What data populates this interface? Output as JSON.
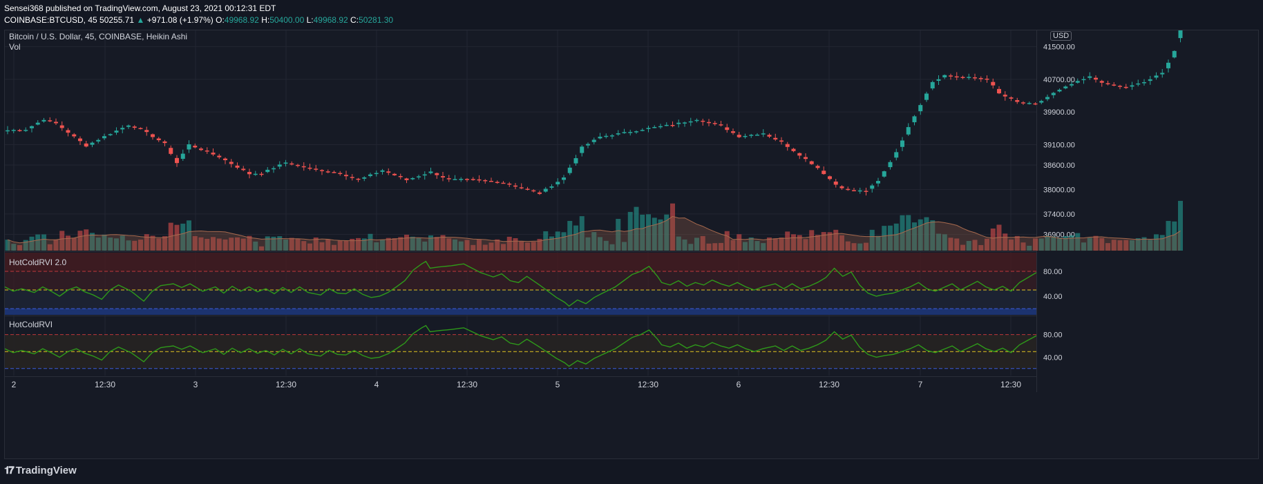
{
  "header": {
    "line1": "Sensei368 published on TradingView.com, August 23, 2021 00:12:31 EDT",
    "symbol": "COINBASE:BTCUSD, 45",
    "price": "50255.71",
    "change_arrow": "▲",
    "change": "+971.08 (+1.97%)",
    "o_label": "O:",
    "o_value": "49968.92",
    "h_label": "H:",
    "h_value": "50400.00",
    "l_label": "L:",
    "l_value": "49968.92",
    "c_label": "C:",
    "c_value": "50281.30"
  },
  "pane_labels": {
    "title": "Bitcoin / U.S. Dollar, 45, COINBASE, Heikin Ashi",
    "vol": "Vol",
    "currency": "USD",
    "rvi1": "HotColdRVI 2.0",
    "rvi2": "HotColdRVI"
  },
  "footer": {
    "logo_text": "TradingView",
    "logo_mark": "𝟏𝟕"
  },
  "colors": {
    "up": "#26a69a",
    "down": "#ef5350",
    "grid": "#232632",
    "rvi_line": "#2e9a1a",
    "mid_line": "#e4c620",
    "upper_line": "#c0393b",
    "lower_line": "#3b5bd6"
  },
  "chart_data": [
    {
      "type": "candlestick",
      "title": "Bitcoin / U.S. Dollar, 45, COINBASE, Heikin Ashi",
      "y_ticks": [
        "41500.00",
        "40700.00",
        "39900.00",
        "39100.00",
        "38600.00",
        "38000.00",
        "37400.00",
        "36900.00"
      ],
      "x_ticks": [
        "2",
        "12:30",
        "3",
        "12:30",
        "4",
        "12:30",
        "5",
        "12:30",
        "6",
        "12:30",
        "7",
        "12:30"
      ],
      "ylim": [
        36500,
        41900
      ],
      "anchors": [
        [
          0,
          39450
        ],
        [
          3,
          39470
        ],
        [
          6,
          39720
        ],
        [
          8,
          39620
        ],
        [
          13,
          39070
        ],
        [
          16,
          39300
        ],
        [
          20,
          39580
        ],
        [
          22,
          39480
        ],
        [
          26,
          39120
        ],
        [
          28,
          38650
        ],
        [
          30,
          39100
        ],
        [
          35,
          38800
        ],
        [
          40,
          38380
        ],
        [
          42,
          38400
        ],
        [
          46,
          38660
        ],
        [
          50,
          38510
        ],
        [
          55,
          38400
        ],
        [
          58,
          38230
        ],
        [
          62,
          38470
        ],
        [
          66,
          38230
        ],
        [
          70,
          38430
        ],
        [
          73,
          38240
        ],
        [
          77,
          38240
        ],
        [
          82,
          38170
        ],
        [
          88,
          37900
        ],
        [
          92,
          38290
        ],
        [
          95,
          39030
        ],
        [
          98,
          39290
        ],
        [
          102,
          39390
        ],
        [
          106,
          39500
        ],
        [
          110,
          39590
        ],
        [
          114,
          39720
        ],
        [
          118,
          39560
        ],
        [
          121,
          39300
        ],
        [
          125,
          39380
        ],
        [
          128,
          39160
        ],
        [
          131,
          38850
        ],
        [
          134,
          38530
        ],
        [
          137,
          38120
        ],
        [
          139,
          37980
        ],
        [
          142,
          37960
        ],
        [
          144,
          38200
        ],
        [
          147,
          38920
        ],
        [
          150,
          39810
        ],
        [
          153,
          40640
        ],
        [
          155,
          40800
        ],
        [
          158,
          40750
        ],
        [
          162,
          40720
        ],
        [
          164,
          40350
        ],
        [
          167,
          40140
        ],
        [
          170,
          40080
        ],
        [
          173,
          40360
        ],
        [
          176,
          40580
        ],
        [
          179,
          40760
        ],
        [
          182,
          40570
        ],
        [
          185,
          40500
        ],
        [
          188,
          40630
        ],
        [
          191,
          40850
        ],
        [
          193,
          41400
        ],
        [
          194,
          42100
        ]
      ]
    },
    {
      "type": "bar",
      "title": "Vol",
      "note": "volume bars with moving-average area, colored by candle direction"
    },
    {
      "type": "line",
      "title": "HotColdRVI 2.0",
      "y_ticks": [
        "80.00",
        "40.00"
      ],
      "ylim": [
        10,
        110
      ],
      "levels": {
        "upper": 80,
        "middle": 50,
        "lower": 20
      },
      "anchors": [
        [
          0,
          55
        ],
        [
          2,
          48
        ],
        [
          4,
          52
        ],
        [
          7,
          46
        ],
        [
          9,
          55
        ],
        [
          11,
          48
        ],
        [
          13,
          40
        ],
        [
          15,
          50
        ],
        [
          17,
          55
        ],
        [
          19,
          47
        ],
        [
          21,
          42
        ],
        [
          23,
          35
        ],
        [
          25,
          50
        ],
        [
          27,
          58
        ],
        [
          30,
          48
        ],
        [
          33,
          32
        ],
        [
          35,
          48
        ],
        [
          37,
          57
        ],
        [
          40,
          60
        ],
        [
          42,
          54
        ],
        [
          44,
          60
        ],
        [
          47,
          48
        ],
        [
          50,
          55
        ],
        [
          52,
          45
        ],
        [
          54,
          56
        ],
        [
          56,
          48
        ],
        [
          58,
          55
        ],
        [
          60,
          47
        ],
        [
          62,
          52
        ],
        [
          64,
          44
        ],
        [
          66,
          54
        ],
        [
          68,
          46
        ],
        [
          70,
          55
        ],
        [
          72,
          46
        ],
        [
          75,
          42
        ],
        [
          77,
          52
        ],
        [
          79,
          45
        ],
        [
          81,
          44
        ],
        [
          83,
          52
        ],
        [
          85,
          43
        ],
        [
          87,
          38
        ],
        [
          89,
          40
        ],
        [
          91,
          46
        ],
        [
          93,
          55
        ],
        [
          95,
          65
        ],
        [
          97,
          82
        ],
        [
          99,
          92
        ],
        [
          100,
          96
        ],
        [
          101,
          85
        ],
        [
          103,
          87
        ],
        [
          106,
          89
        ],
        [
          109,
          92
        ],
        [
          111,
          85
        ],
        [
          113,
          78
        ],
        [
          116,
          71
        ],
        [
          118,
          76
        ],
        [
          120,
          65
        ],
        [
          122,
          62
        ],
        [
          124,
          72
        ],
        [
          127,
          58
        ],
        [
          129,
          48
        ],
        [
          131,
          38
        ],
        [
          133,
          30
        ],
        [
          134,
          24
        ],
        [
          136,
          34
        ],
        [
          138,
          28
        ],
        [
          140,
          38
        ],
        [
          142,
          45
        ],
        [
          145,
          55
        ],
        [
          147,
          65
        ],
        [
          149,
          75
        ],
        [
          151,
          80
        ],
        [
          153,
          88
        ],
        [
          155,
          72
        ],
        [
          156,
          62
        ],
        [
          158,
          58
        ],
        [
          160,
          65
        ],
        [
          162,
          56
        ],
        [
          164,
          62
        ],
        [
          166,
          58
        ],
        [
          168,
          66
        ],
        [
          170,
          60
        ],
        [
          172,
          56
        ],
        [
          174,
          62
        ],
        [
          176,
          55
        ],
        [
          178,
          50
        ],
        [
          180,
          55
        ],
        [
          183,
          60
        ],
        [
          185,
          52
        ],
        [
          187,
          60
        ],
        [
          189,
          52
        ],
        [
          191,
          56
        ],
        [
          193,
          62
        ],
        [
          195,
          70
        ],
        [
          197,
          85
        ],
        [
          199,
          72
        ],
        [
          201,
          79
        ],
        [
          203,
          58
        ],
        [
          205,
          45
        ],
        [
          207,
          40
        ],
        [
          209,
          43
        ],
        [
          211,
          45
        ],
        [
          213,
          50
        ],
        [
          215,
          55
        ],
        [
          217,
          62
        ],
        [
          219,
          52
        ],
        [
          221,
          48
        ],
        [
          223,
          54
        ],
        [
          225,
          60
        ],
        [
          227,
          50
        ],
        [
          229,
          57
        ],
        [
          231,
          64
        ],
        [
          233,
          55
        ],
        [
          235,
          50
        ],
        [
          237,
          56
        ],
        [
          239,
          48
        ],
        [
          241,
          62
        ],
        [
          243,
          70
        ],
        [
          245,
          78
        ]
      ]
    },
    {
      "type": "line",
      "title": "HotColdRVI",
      "y_ticks": [
        "80.00",
        "40.00"
      ],
      "ylim": [
        10,
        110
      ],
      "levels": {
        "upper": 80,
        "middle": 50,
        "lower": 20
      },
      "note": "same series as HotColdRVI 2.0, plotted without colored background zones"
    }
  ]
}
